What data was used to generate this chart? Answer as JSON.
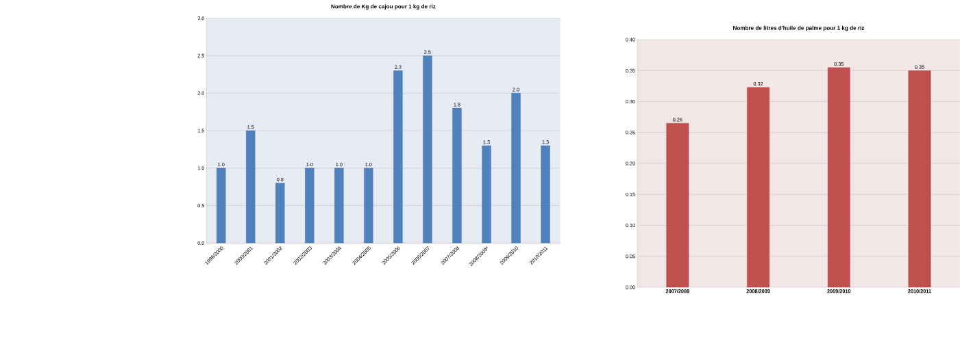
{
  "chart_data": [
    {
      "type": "bar",
      "title": "Nombre de Kg de cajou pour 1 kg de riz",
      "categories": [
        "1999/2000",
        "2000/2001",
        "2001/2002",
        "2002/2003",
        "2003/2004",
        "2004/2005",
        "2005/2006",
        "2006/2007",
        "2007/2008",
        "2008/2009*",
        "2009/2010",
        "2010/2011"
      ],
      "values": [
        1.0,
        1.5,
        0.8,
        1.0,
        1.0,
        1.0,
        2.3,
        2.5,
        1.8,
        1.3,
        2.0,
        1.3
      ],
      "value_labels": [
        "1.0",
        "1.5",
        "0.8",
        "1.0",
        "1.0",
        "1.0",
        "2.3",
        "2.5",
        "1.8",
        "1.3",
        "2.0",
        "1.3"
      ],
      "color": "#4f81bd",
      "ylim": [
        0,
        3
      ],
      "yticks": [
        {
          "value": 0,
          "label": "0.0"
        },
        {
          "value": 0.5,
          "label": "0.5"
        },
        {
          "value": 1,
          "label": "1.0"
        },
        {
          "value": 1.5,
          "label": "1.5"
        },
        {
          "value": 2,
          "label": "2.0"
        },
        {
          "value": 2.5,
          "label": "2.5"
        },
        {
          "value": 3,
          "label": "3.0"
        }
      ],
      "grid": "y"
    },
    {
      "type": "bar",
      "title": "Nombre de litres d'huile de palme pour 1 kg de riz",
      "categories": [
        "2007/2008",
        "2008/2009",
        "2009/2010",
        "2010/2011"
      ],
      "values": [
        0.265,
        0.323,
        0.355,
        0.35
      ],
      "value_labels": [
        "0.26",
        "0.32",
        "0.35",
        "0.35"
      ],
      "color": "#c0504d",
      "ylim": [
        0,
        0.4
      ],
      "yticks": [
        {
          "value": 0,
          "label": "0.00"
        },
        {
          "value": 0.05,
          "label": "0.05"
        },
        {
          "value": 0.1,
          "label": "0.10"
        },
        {
          "value": 0.15,
          "label": "0.15"
        },
        {
          "value": 0.2,
          "label": "0.20"
        },
        {
          "value": 0.25,
          "label": "0.25"
        },
        {
          "value": 0.3,
          "label": "0.30"
        },
        {
          "value": 0.35,
          "label": "0.35"
        },
        {
          "value": 0.4,
          "label": "0.40"
        }
      ],
      "grid": "y"
    }
  ]
}
